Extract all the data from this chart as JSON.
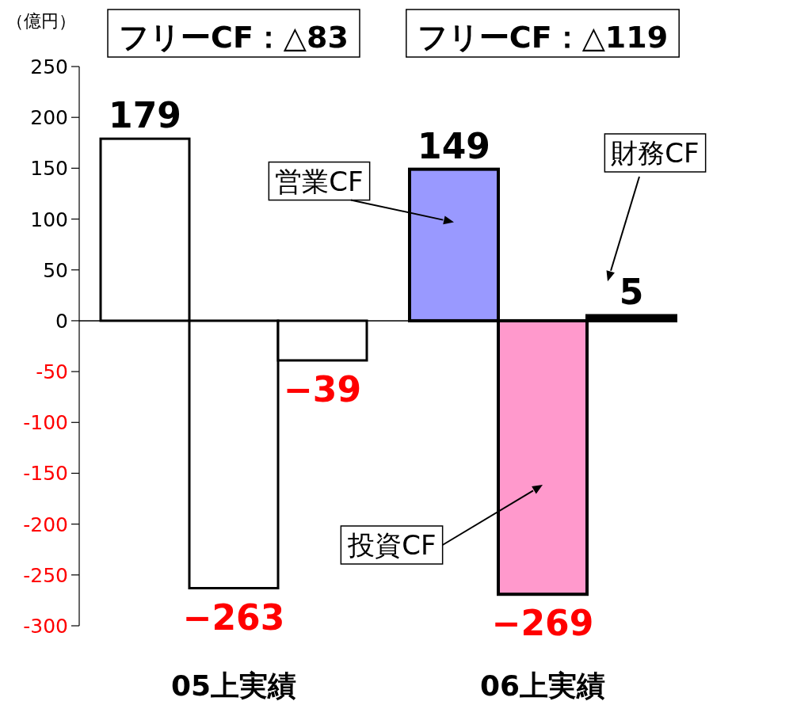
{
  "chart_data": {
    "type": "bar",
    "ylabel": "（億円）",
    "categories": [
      "05上実績",
      "06上実績"
    ],
    "series": [
      {
        "name": "営業CF",
        "colors": [
          "#ffffff",
          "#9999ff"
        ],
        "values": [
          179,
          149
        ],
        "value_labels": [
          "179",
          "149"
        ]
      },
      {
        "name": "投資CF",
        "colors": [
          "#ffffff",
          "#ff99cc"
        ],
        "values": [
          -263,
          -269
        ],
        "value_labels": [
          "−263",
          "−269"
        ]
      },
      {
        "name": "財務CF",
        "colors": [
          "#ffffff",
          "#000000"
        ],
        "values": [
          -39,
          5
        ],
        "value_labels": [
          "−39",
          "5"
        ]
      }
    ],
    "ylim": [
      -300,
      250
    ],
    "yticks": [
      250,
      200,
      150,
      100,
      50,
      0,
      -50,
      -100,
      -150,
      -200,
      -250,
      -300
    ],
    "annotations": [
      "フリーCF：△83",
      "フリーCF：△119"
    ]
  }
}
